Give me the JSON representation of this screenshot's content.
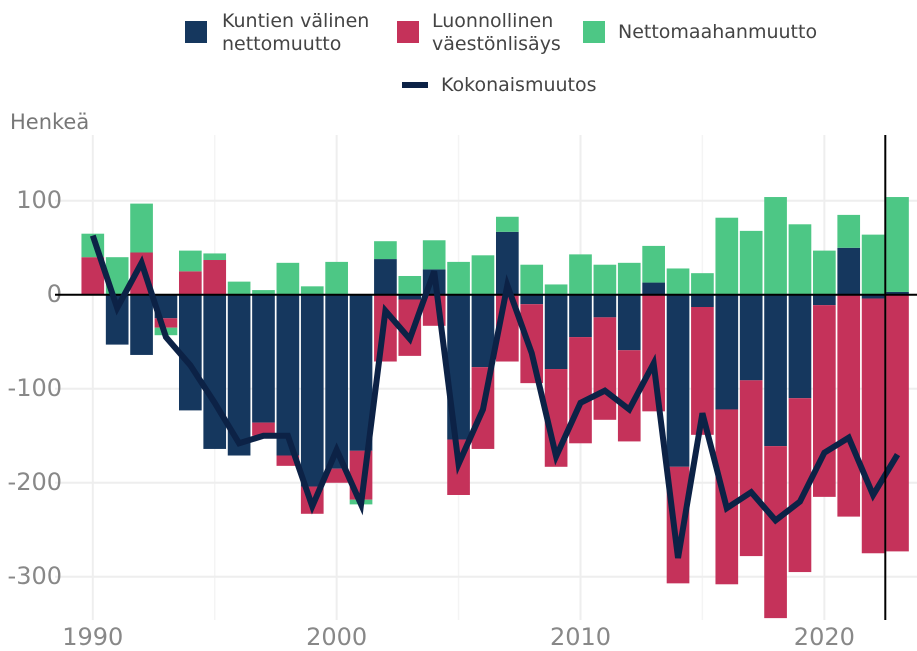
{
  "chart_data": {
    "type": "stacked_bar_line",
    "y_label": "Henkeä",
    "x": [
      1990,
      1991,
      1992,
      1993,
      1994,
      1995,
      1996,
      1997,
      1998,
      1999,
      2000,
      2001,
      2002,
      2003,
      2004,
      2005,
      2006,
      2007,
      2008,
      2009,
      2010,
      2011,
      2012,
      2013,
      2014,
      2015,
      2016,
      2017,
      2018,
      2019,
      2020,
      2021,
      2022,
      2023
    ],
    "series": [
      {
        "name": "Kuntien välinen nettomuutto",
        "color": "#15375e",
        "values": [
          0,
          -53,
          -64,
          -25,
          -123,
          -164,
          -171,
          -136,
          -171,
          -204,
          -185,
          -166,
          38,
          -5,
          27,
          -154,
          -77,
          67,
          -10,
          -79,
          -45,
          -24,
          -59,
          13,
          -183,
          -13,
          -122,
          -91,
          -161,
          -110,
          -11,
          50,
          -4,
          3
        ]
      },
      {
        "name": "Luonnollinen väestönlisäys",
        "color": "#c5325a",
        "values": [
          40,
          0,
          45,
          -10,
          25,
          37,
          0,
          -14,
          -11,
          -29,
          -15,
          -52,
          -71,
          -60,
          -33,
          -59,
          -87,
          -71,
          -84,
          -104,
          -113,
          -109,
          -97,
          -124,
          -124,
          -136,
          -186,
          -187,
          -183,
          -185,
          -204,
          -236,
          -271,
          -273
        ]
      },
      {
        "name": "Nettomaahanmuutto",
        "color": "#4dc785",
        "values": [
          25,
          40,
          52,
          -8,
          22,
          7,
          14,
          5,
          34,
          9,
          35,
          -5,
          19,
          20,
          31,
          35,
          42,
          16,
          32,
          11,
          43,
          32,
          34,
          39,
          28,
          23,
          82,
          68,
          104,
          75,
          47,
          35,
          64,
          101
        ]
      },
      {
        "name": "Kokonaismuutos",
        "color": "#0c2246",
        "kind": "line",
        "values": [
          63,
          -14,
          34,
          -45,
          -75,
          -115,
          -158,
          -150,
          -150,
          -225,
          -165,
          -223,
          -17,
          -47,
          25,
          -180,
          -122,
          10,
          -62,
          -172,
          -115,
          -102,
          -122,
          -73,
          -280,
          -126,
          -227,
          -210,
          -240,
          -220,
          -168,
          -152,
          -213,
          -170
        ]
      }
    ],
    "xlim": [
      1988.45,
      2023.8
    ],
    "ylim": [
      -346,
      170
    ],
    "xticks": [
      1990,
      2000,
      2010,
      2020
    ],
    "yticks": [
      -300,
      -200,
      -100,
      0,
      100
    ],
    "grid": true,
    "vline_x": 2022.5
  }
}
